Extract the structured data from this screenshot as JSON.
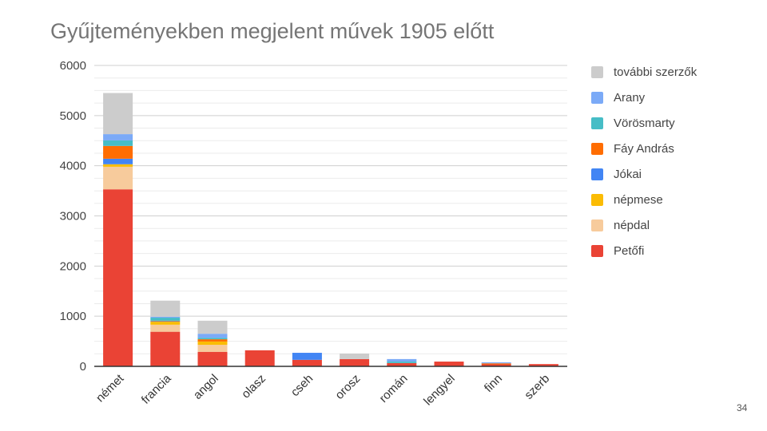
{
  "page_number": "34",
  "chart_data": {
    "type": "bar",
    "stacked": true,
    "title": "Gyűjteményekben megjelent művek 1905 előtt",
    "xlabel": "",
    "ylabel": "",
    "ylim": [
      0,
      6000
    ],
    "yticks": [
      0,
      1000,
      2000,
      3000,
      4000,
      5000,
      6000
    ],
    "grid": true,
    "legend_position": "right",
    "categories": [
      "német",
      "francia",
      "angol",
      "olasz",
      "cseh",
      "orosz",
      "román",
      "lengyel",
      "finn",
      "szerb"
    ],
    "series": [
      {
        "name": "Petőfi",
        "color": "#ea4335",
        "values": [
          3530,
          690,
          290,
          320,
          130,
          145,
          65,
          95,
          40,
          45
        ]
      },
      {
        "name": "népdal",
        "color": "#f7cb9c",
        "values": [
          450,
          140,
          140,
          0,
          0,
          0,
          0,
          0,
          0,
          0
        ]
      },
      {
        "name": "népmese",
        "color": "#fbbc04",
        "values": [
          50,
          60,
          65,
          0,
          0,
          0,
          0,
          0,
          0,
          0
        ]
      },
      {
        "name": "Jókai",
        "color": "#4285f4",
        "values": [
          110,
          10,
          0,
          0,
          140,
          0,
          0,
          0,
          0,
          0
        ]
      },
      {
        "name": "Fáy András",
        "color": "#ff6d01",
        "values": [
          255,
          10,
          45,
          0,
          0,
          0,
          0,
          0,
          20,
          0
        ]
      },
      {
        "name": "Vörösmarty",
        "color": "#46bdc6",
        "values": [
          110,
          60,
          30,
          0,
          0,
          0,
          30,
          0,
          0,
          0
        ]
      },
      {
        "name": "Arany",
        "color": "#7baaf7",
        "values": [
          125,
          20,
          80,
          0,
          0,
          0,
          50,
          0,
          20,
          0
        ]
      },
      {
        "name": "további szerzők",
        "color": "#cccccc",
        "values": [
          820,
          320,
          260,
          0,
          0,
          110,
          0,
          0,
          0,
          0
        ]
      }
    ]
  }
}
